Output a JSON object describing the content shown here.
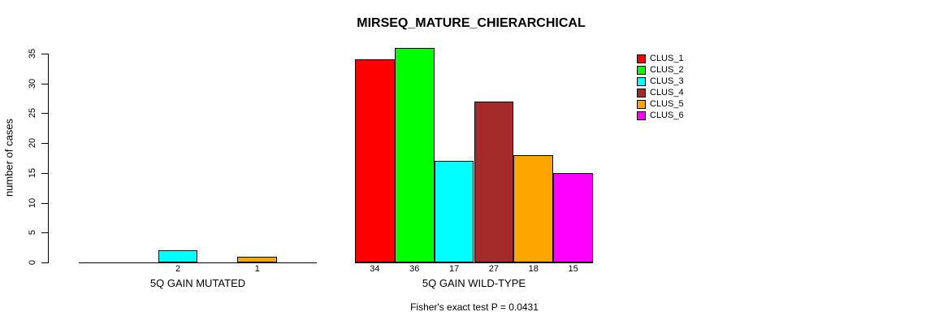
{
  "chart_data": {
    "type": "bar",
    "title": "MIRSEQ_MATURE_CHIERARCHICAL",
    "ylabel": "number of cases",
    "xlabel": "",
    "ylim": [
      0,
      35
    ],
    "yticks": [
      0,
      5,
      10,
      15,
      20,
      25,
      30,
      35
    ],
    "grid": false,
    "legend_position": "right",
    "background_color": "#FFFFFF",
    "categories": [
      "5Q GAIN MUTATED",
      "5Q GAIN WILD-TYPE"
    ],
    "series": [
      {
        "name": "CLUS_1",
        "color": "#FF0000",
        "values": [
          0,
          34
        ]
      },
      {
        "name": "CLUS_2",
        "color": "#00FF00",
        "values": [
          0,
          36
        ]
      },
      {
        "name": "CLUS_3",
        "color": "#00FFFF",
        "values": [
          2,
          17
        ]
      },
      {
        "name": "CLUS_4",
        "color": "#A52A2A",
        "values": [
          0,
          27
        ]
      },
      {
        "name": "CLUS_5",
        "color": "#FFA500",
        "values": [
          1,
          18
        ]
      },
      {
        "name": "CLUS_6",
        "color": "#FF00FF",
        "values": [
          0,
          15
        ]
      }
    ],
    "groups": [
      {
        "label": "5Q GAIN MUTATED",
        "values": [
          0,
          0,
          2,
          0,
          1,
          0
        ]
      },
      {
        "label": "5Q GAIN WILD-TYPE",
        "values": [
          34,
          36,
          17,
          27,
          18,
          15
        ]
      }
    ],
    "bar_value_labels_visible": [
      "2",
      "1",
      "34",
      "36",
      "17",
      "27",
      "18",
      "15"
    ],
    "annotation": "Fisher's exact test P = 0.0431"
  }
}
